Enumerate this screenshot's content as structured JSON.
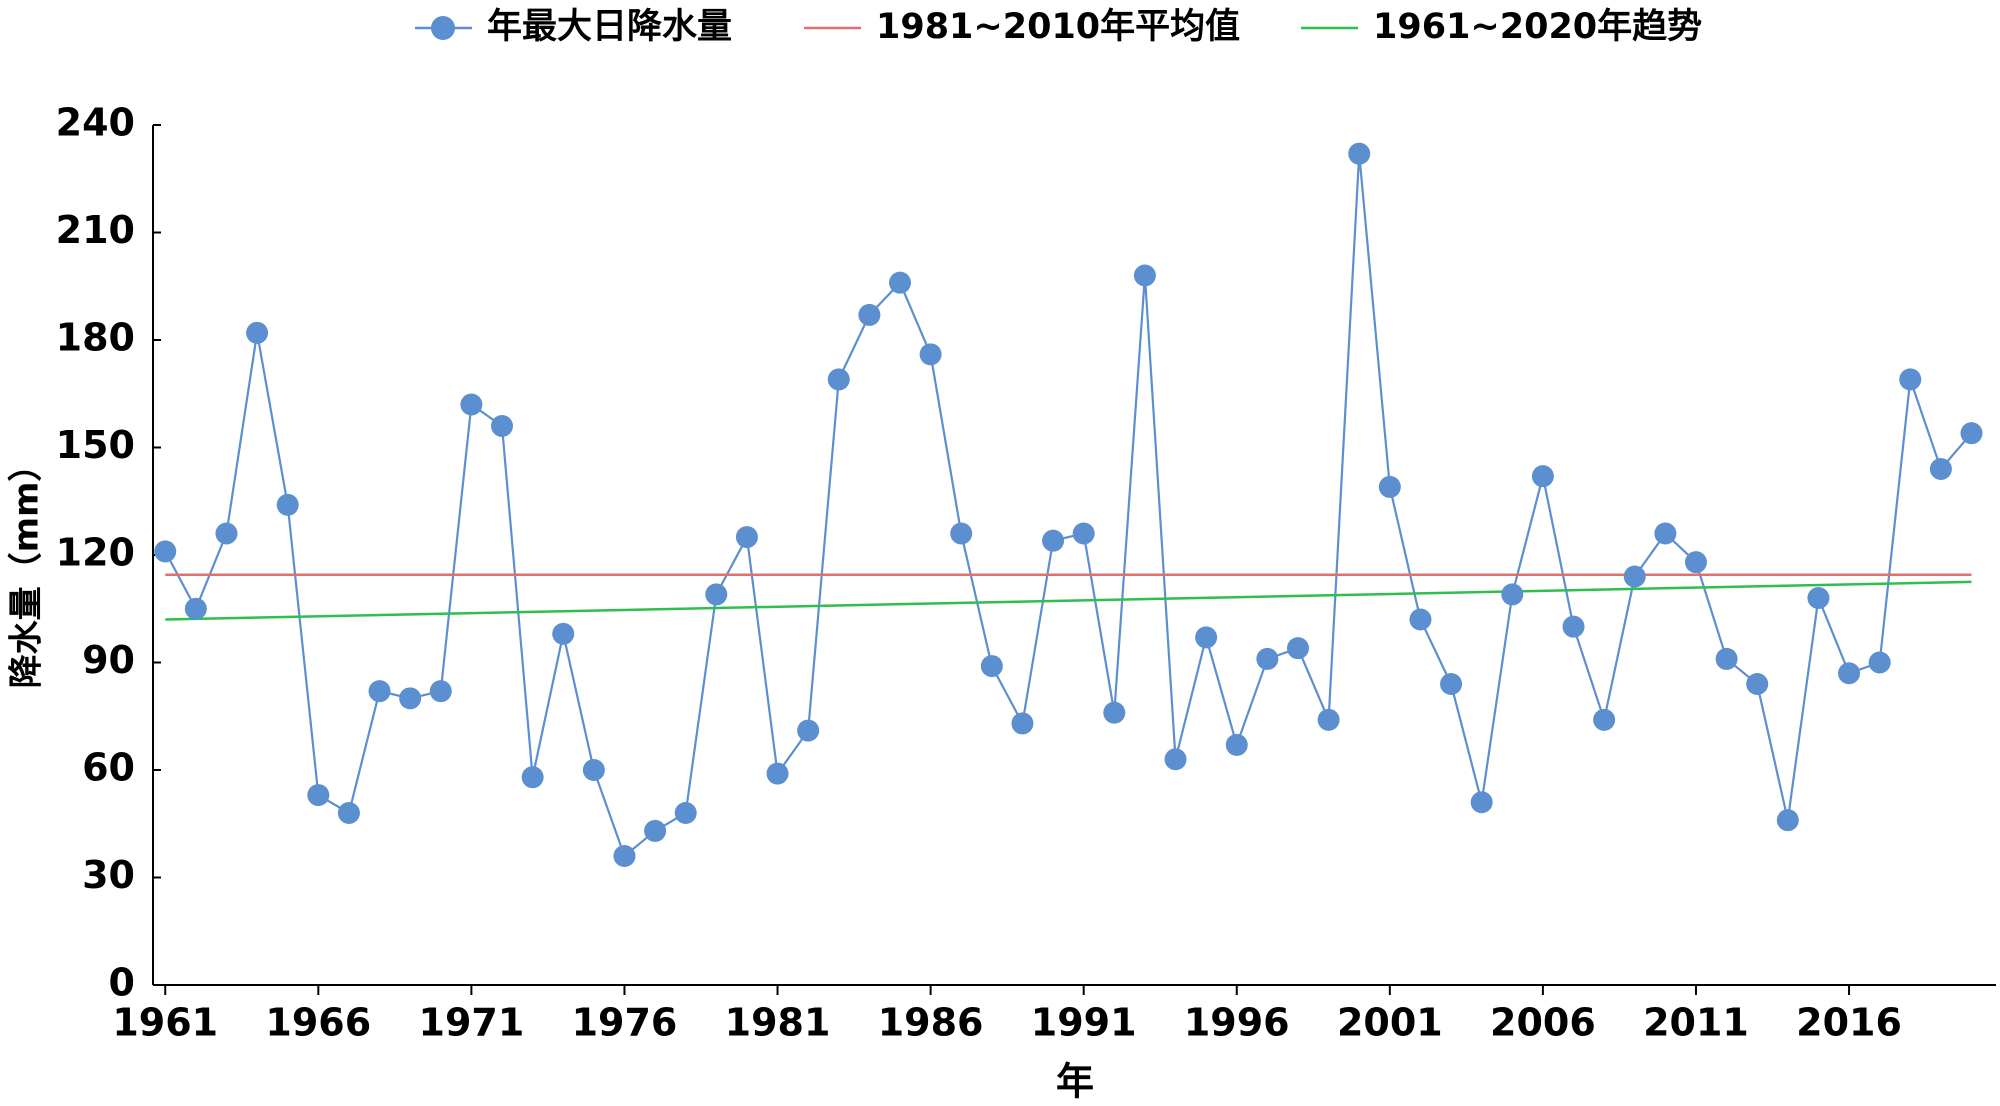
{
  "chart_data": {
    "type": "line",
    "xlabel": "年",
    "ylabel": "降水量（mm）",
    "x": [
      1961,
      1962,
      1963,
      1964,
      1965,
      1966,
      1967,
      1968,
      1969,
      1970,
      1971,
      1972,
      1973,
      1974,
      1975,
      1976,
      1977,
      1978,
      1979,
      1980,
      1981,
      1982,
      1983,
      1984,
      1985,
      1986,
      1987,
      1988,
      1989,
      1990,
      1991,
      1992,
      1993,
      1994,
      1995,
      1996,
      1997,
      1998,
      1999,
      2000,
      2001,
      2002,
      2003,
      2004,
      2005,
      2006,
      2007,
      2008,
      2009,
      2010,
      2011,
      2012,
      2013,
      2014,
      2015,
      2016,
      2017,
      2018,
      2019,
      2020
    ],
    "series": [
      {
        "name": "年最大日降水量",
        "color": "#5b8fd0",
        "values": [
          121,
          105,
          126,
          182,
          134,
          53,
          48,
          82,
          80,
          82,
          162,
          156,
          58,
          98,
          60,
          36,
          43,
          48,
          109,
          125,
          59,
          71,
          169,
          187,
          196,
          176,
          126,
          89,
          73,
          124,
          126,
          76,
          198,
          63,
          97,
          67,
          91,
          94,
          74,
          232,
          139,
          102,
          84,
          51,
          109,
          142,
          100,
          74,
          114,
          126,
          118,
          91,
          84,
          46,
          108,
          87,
          90,
          169,
          144,
          154
        ]
      },
      {
        "name": "1981~2010年平均值",
        "color": "#e07070",
        "value": 114.5
      },
      {
        "name": "1961~2020年趋势",
        "color": "#2fbf4f",
        "start": 102,
        "end": 112.5
      }
    ],
    "xlim": [
      1960.6,
      2020.8
    ],
    "xticks": [
      1961,
      1966,
      1971,
      1976,
      1981,
      1986,
      1991,
      1996,
      2001,
      2006,
      2011,
      2016
    ],
    "ylim": [
      0,
      240
    ],
    "yticks": [
      0,
      30,
      60,
      90,
      120,
      150,
      180,
      210,
      240
    ],
    "legend": "top",
    "grid": false
  }
}
